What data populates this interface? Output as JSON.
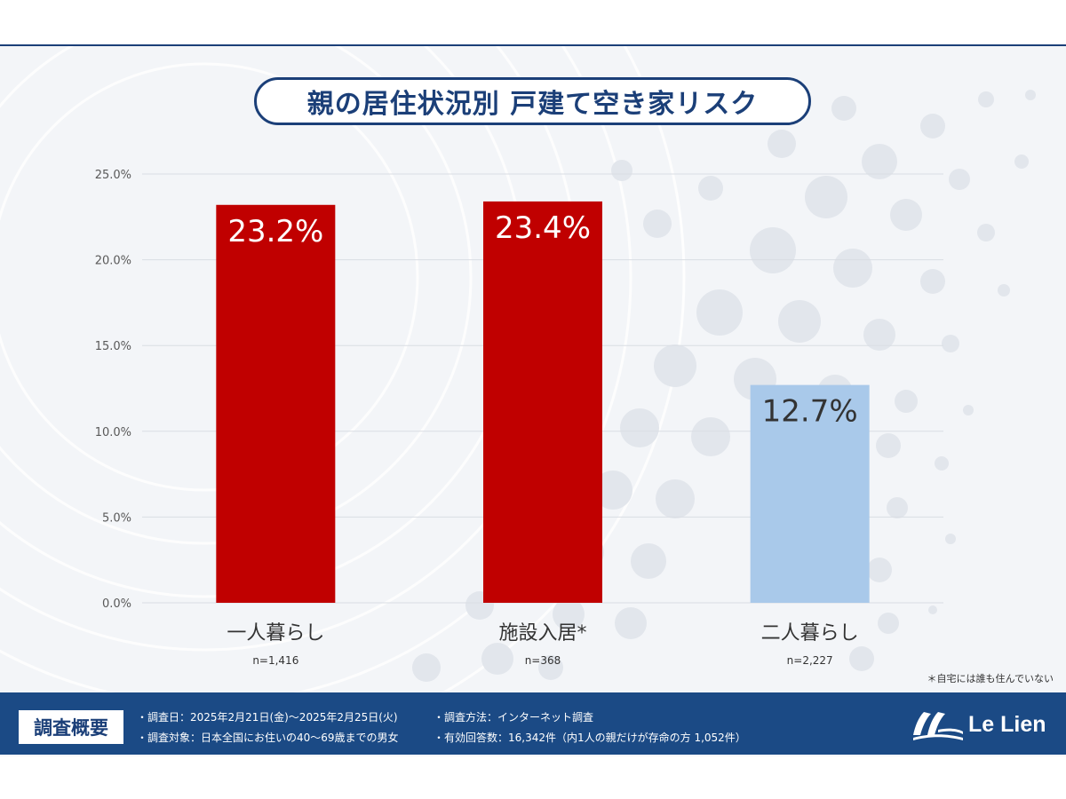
{
  "title": "親の居住状況別 戸建て空き家リスク",
  "chart_data": {
    "type": "bar",
    "categories": [
      "一人暮らし",
      "施設入居*",
      "二人暮らし"
    ],
    "values": [
      23.2,
      23.4,
      12.7
    ],
    "value_labels": [
      "23.2%",
      "23.4%",
      "12.7%"
    ],
    "sample_sizes": [
      "n=1,416",
      "n=368",
      "n=2,227"
    ],
    "bar_colors": [
      "#c00000",
      "#c00000",
      "#a9c9ea"
    ],
    "value_label_colors": [
      "#ffffff",
      "#ffffff",
      "#333333"
    ],
    "yticks": [
      "0.0%",
      "5.0%",
      "10.0%",
      "15.0%",
      "20.0%",
      "25.0%"
    ],
    "ylim": [
      0,
      25
    ],
    "grid": true,
    "legend": false
  },
  "footnote": "＊自宅には誰も住んでいない",
  "footer": {
    "badge": "調査概要",
    "line1": "・調査日：2025年2月21日(金)～2025年2月25日(火)",
    "line2": "・調査対象：日本全国にお住いの40～69歳までの男女",
    "line3": "・調査方法：インターネット調査",
    "line4": "・有効回答数：16,342件（内1人の親だけが存命の方 1,052件）",
    "logo_text": "Le Lien"
  }
}
